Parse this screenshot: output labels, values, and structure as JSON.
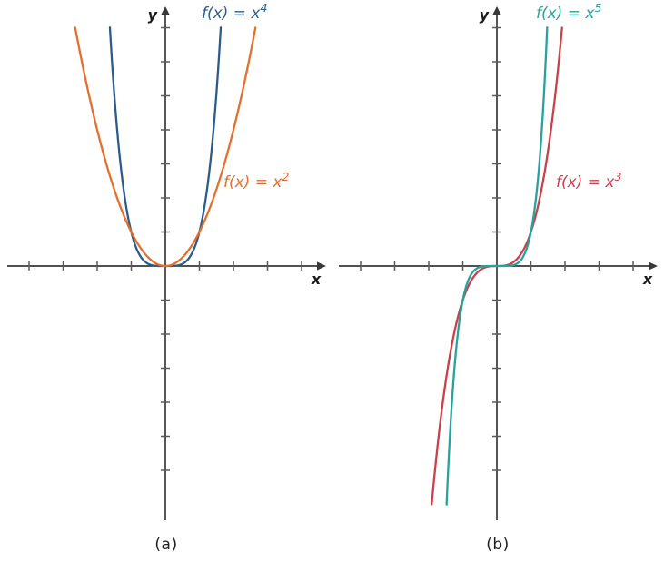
{
  "figure": {
    "background": "#ffffff",
    "caption_a": "(a)",
    "caption_b": "(b)"
  },
  "chart_data": [
    {
      "type": "line",
      "caption": "(a)",
      "xlabel": "x",
      "ylabel": "y",
      "xlim": [
        -4.85,
        4.9
      ],
      "ylim": [
        -7.65,
        7.8
      ],
      "x_ticks": [
        -4,
        -3,
        -2,
        -1,
        1,
        2,
        3,
        4
      ],
      "y_ticks": [
        -6,
        -5,
        -4,
        -3,
        -2,
        -1,
        1,
        2,
        3,
        4,
        5,
        6,
        7
      ],
      "grid": false,
      "legend_position": "inline-labels",
      "axis_color": "#383838",
      "tick_color": "#5a5a5a",
      "series": [
        {
          "id": "x4",
          "name": "f(x) = x⁴",
          "expression": "y = x^4",
          "exponent": 4,
          "color": "#2d5c8c",
          "domain": [
            -1.627,
            1.627
          ],
          "label": {
            "base": "f(x) = x",
            "sup": "4",
            "x": 222,
            "y": 20
          }
        },
        {
          "id": "x2",
          "name": "f(x) = x²",
          "expression": "y = x^2",
          "exponent": 2,
          "color": "#e56f2c",
          "domain": [
            -2.646,
            2.646
          ],
          "label": {
            "base": "f(x) = x",
            "sup": "2",
            "x": 246,
            "y": 206
          }
        }
      ]
    },
    {
      "type": "line",
      "caption": "(b)",
      "xlabel": "x",
      "ylabel": "y",
      "xlim": [
        -4.85,
        4.9
      ],
      "ylim": [
        -7.65,
        7.8
      ],
      "x_ticks": [
        -4,
        -3,
        -2,
        -1,
        1,
        2,
        3,
        4
      ],
      "y_ticks": [
        -6,
        -5,
        -4,
        -3,
        -2,
        -1,
        1,
        2,
        3,
        4,
        5,
        6,
        7
      ],
      "grid": false,
      "legend_position": "inline-labels",
      "axis_color": "#383838",
      "tick_color": "#5a5a5a",
      "series": [
        {
          "id": "x3",
          "name": "f(x) = x³",
          "expression": "y = x^3",
          "exponent": 3,
          "color": "#c7424b",
          "domain": [
            -1.913,
            1.913
          ],
          "label": {
            "base": "f(x) = x",
            "sup": "3",
            "x": 247,
            "y": 206
          }
        },
        {
          "id": "x5",
          "name": "f(x) = x⁵",
          "expression": "y = x^5",
          "exponent": 5,
          "color": "#27a29d",
          "domain": [
            -1.476,
            1.476
          ],
          "label": {
            "base": "f(x) = x",
            "sup": "5",
            "x": 225,
            "y": 20
          }
        }
      ]
    }
  ]
}
